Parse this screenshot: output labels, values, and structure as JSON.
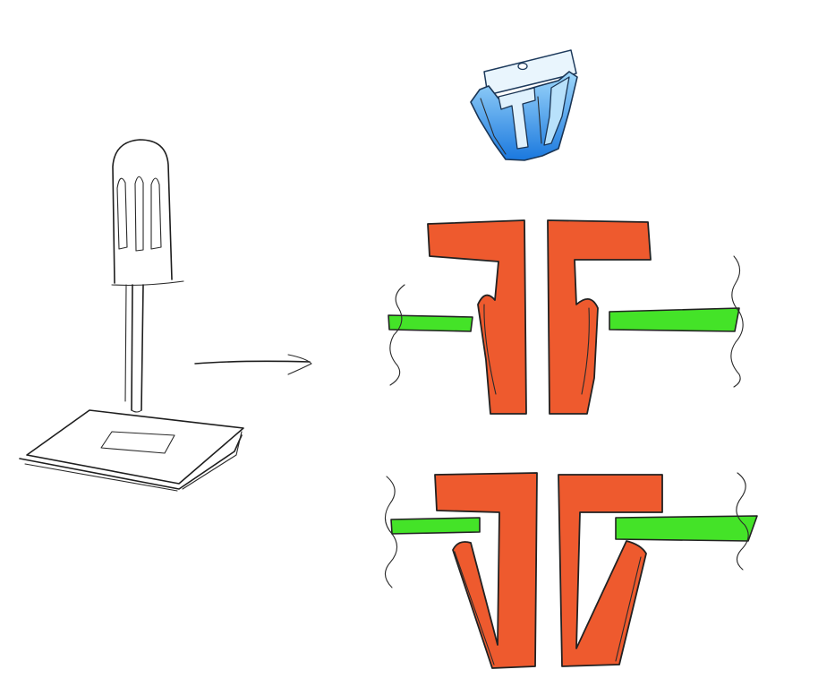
{
  "colors": {
    "clip": "#ee5a2e",
    "panel": "#44e328",
    "blue_light": "#6fc4f7",
    "blue_dark": "#1c7fe0",
    "ink": "#1e1e1e"
  },
  "illustration": {
    "tool": "screwdriver-icon",
    "arrow": "arrow-right-icon",
    "fastener": "blue-push-clip-icon"
  }
}
